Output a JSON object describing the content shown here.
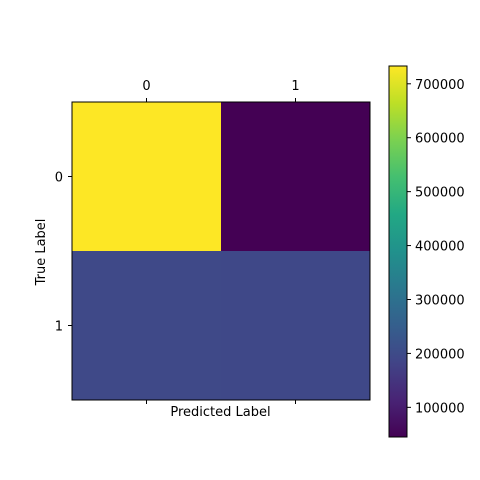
{
  "chart_data": {
    "type": "heatmap",
    "title": "",
    "xlabel": "Predicted Label",
    "ylabel": "True Label",
    "x_categories": [
      "0",
      "1"
    ],
    "y_categories": [
      "0",
      "1"
    ],
    "x_ticks_position": "top",
    "values": [
      [
        733000,
        45000
      ],
      [
        196000,
        192000
      ]
    ],
    "colormap": "viridis",
    "colorbar": {
      "range": [
        45000,
        733000
      ],
      "ticks": [
        100000,
        200000,
        300000,
        400000,
        500000,
        600000,
        700000
      ],
      "tick_labels": [
        "100000",
        "200000",
        "300000",
        "400000",
        "500000",
        "600000",
        "700000"
      ],
      "placement": "right"
    },
    "grid": false
  }
}
